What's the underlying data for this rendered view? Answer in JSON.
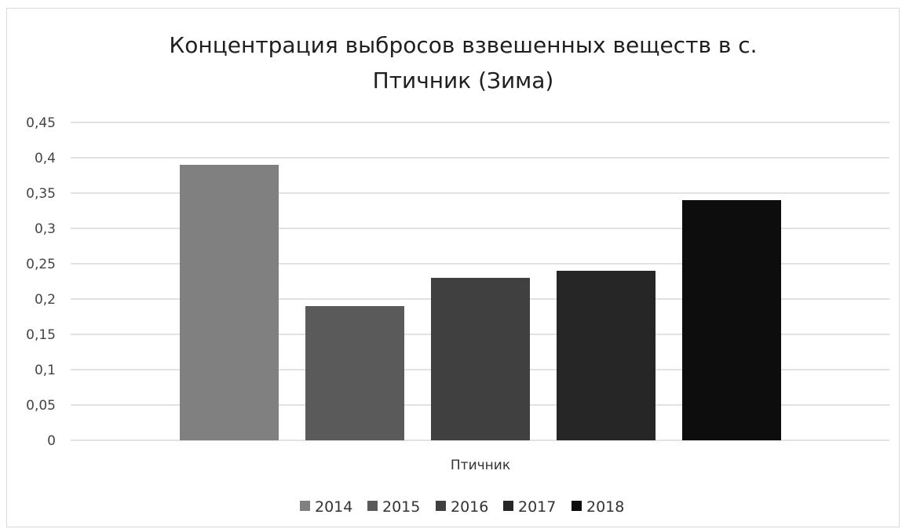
{
  "chart_data": {
    "type": "bar",
    "title": "Концентрация выбросов взвешенных веществ в с. Птичник (Зима)",
    "title_lines": [
      "Концентрация выбросов взвешенных веществ в с.",
      "Птичник (Зима)"
    ],
    "categories": [
      "Птичник"
    ],
    "series": [
      {
        "name": "2014",
        "values": [
          0.39
        ],
        "color": "#808080"
      },
      {
        "name": "2015",
        "values": [
          0.19
        ],
        "color": "#5a5a5a"
      },
      {
        "name": "2016",
        "values": [
          0.23
        ],
        "color": "#404040"
      },
      {
        "name": "2017",
        "values": [
          0.24
        ],
        "color": "#262626"
      },
      {
        "name": "2018",
        "values": [
          0.34
        ],
        "color": "#0d0d0d"
      }
    ],
    "ylim": [
      0,
      0.45
    ],
    "y_ticks": [
      "0",
      "0,05",
      "0,1",
      "0,15",
      "0,2",
      "0,25",
      "0,3",
      "0,35",
      "0,4",
      "0,45"
    ],
    "y_tick_values": [
      0,
      0.05,
      0.1,
      0.15,
      0.2,
      0.25,
      0.3,
      0.35,
      0.4,
      0.45
    ],
    "grid": true,
    "legend_position": "bottom"
  }
}
